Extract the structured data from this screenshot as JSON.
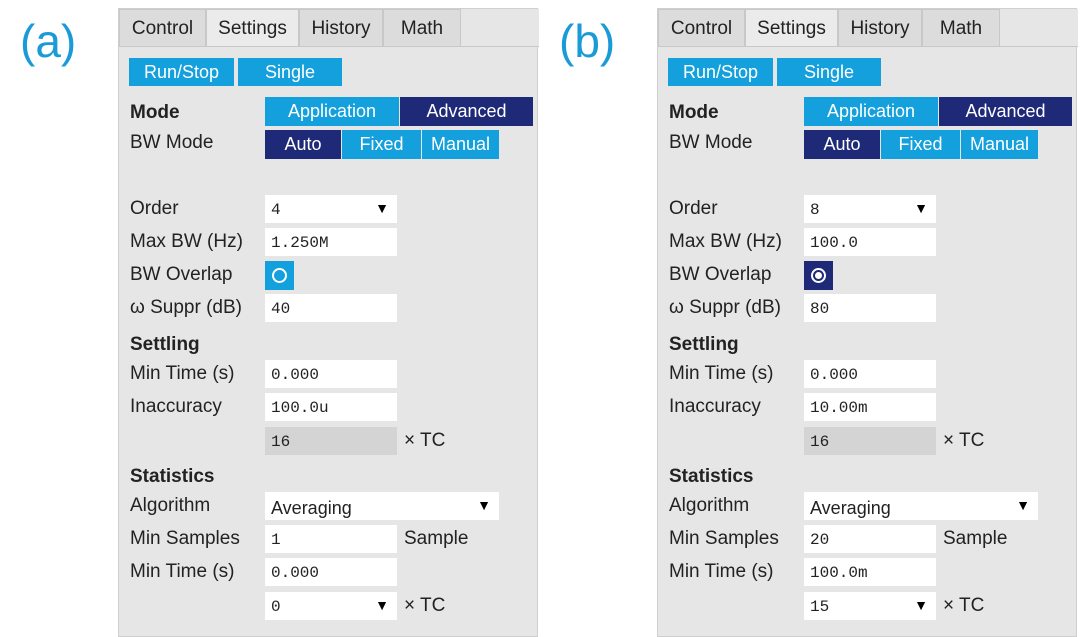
{
  "panels": [
    {
      "label": "(a)",
      "tabs": [
        "Control",
        "Settings",
        "History",
        "Math"
      ],
      "buttons": [
        "Run/Stop",
        "Single"
      ],
      "mode": {
        "label": "Mode",
        "options": [
          "Application",
          "Advanced"
        ]
      },
      "bw_mode": {
        "label": "BW Mode",
        "options": [
          "Auto",
          "Fixed",
          "Manual"
        ]
      },
      "order": {
        "label": "Order",
        "value": "4"
      },
      "max_bw": {
        "label": "Max BW (Hz)",
        "value": "1.250M"
      },
      "bw_overlap": {
        "label": "BW Overlap",
        "checked": false
      },
      "suppr": {
        "label": "ω Suppr (dB)",
        "value": "40"
      },
      "settling": {
        "title": "Settling",
        "min_time": {
          "label": "Min Time (s)",
          "value": "0.000"
        },
        "inaccuracy": {
          "label": "Inaccuracy",
          "value": "100.0u"
        },
        "tc": {
          "value": "16",
          "unit": "× TC"
        }
      },
      "statistics": {
        "title": "Statistics",
        "algorithm": {
          "label": "Algorithm",
          "value": "Averaging"
        },
        "min_samples": {
          "label": "Min Samples",
          "value": "1",
          "unit": "Sample"
        },
        "min_time": {
          "label": "Min Time (s)",
          "value": "0.000"
        },
        "tc": {
          "value": "0",
          "unit": "× TC"
        }
      }
    },
    {
      "label": "(b)",
      "tabs": [
        "Control",
        "Settings",
        "History",
        "Math"
      ],
      "buttons": [
        "Run/Stop",
        "Single"
      ],
      "mode": {
        "label": "Mode",
        "options": [
          "Application",
          "Advanced"
        ]
      },
      "bw_mode": {
        "label": "BW Mode",
        "options": [
          "Auto",
          "Fixed",
          "Manual"
        ]
      },
      "order": {
        "label": "Order",
        "value": "8"
      },
      "max_bw": {
        "label": "Max BW (Hz)",
        "value": "100.0"
      },
      "bw_overlap": {
        "label": "BW Overlap",
        "checked": true
      },
      "suppr": {
        "label": "ω Suppr (dB)",
        "value": "80"
      },
      "settling": {
        "title": "Settling",
        "min_time": {
          "label": "Min Time (s)",
          "value": "0.000"
        },
        "inaccuracy": {
          "label": "Inaccuracy",
          "value": "10.00m"
        },
        "tc": {
          "value": "16",
          "unit": "× TC"
        }
      },
      "statistics": {
        "title": "Statistics",
        "algorithm": {
          "label": "Algorithm",
          "value": "Averaging"
        },
        "min_samples": {
          "label": "Min Samples",
          "value": "20",
          "unit": "Sample"
        },
        "min_time": {
          "label": "Min Time (s)",
          "value": "100.0m"
        },
        "tc": {
          "value": "15",
          "unit": "× TC"
        }
      }
    }
  ]
}
